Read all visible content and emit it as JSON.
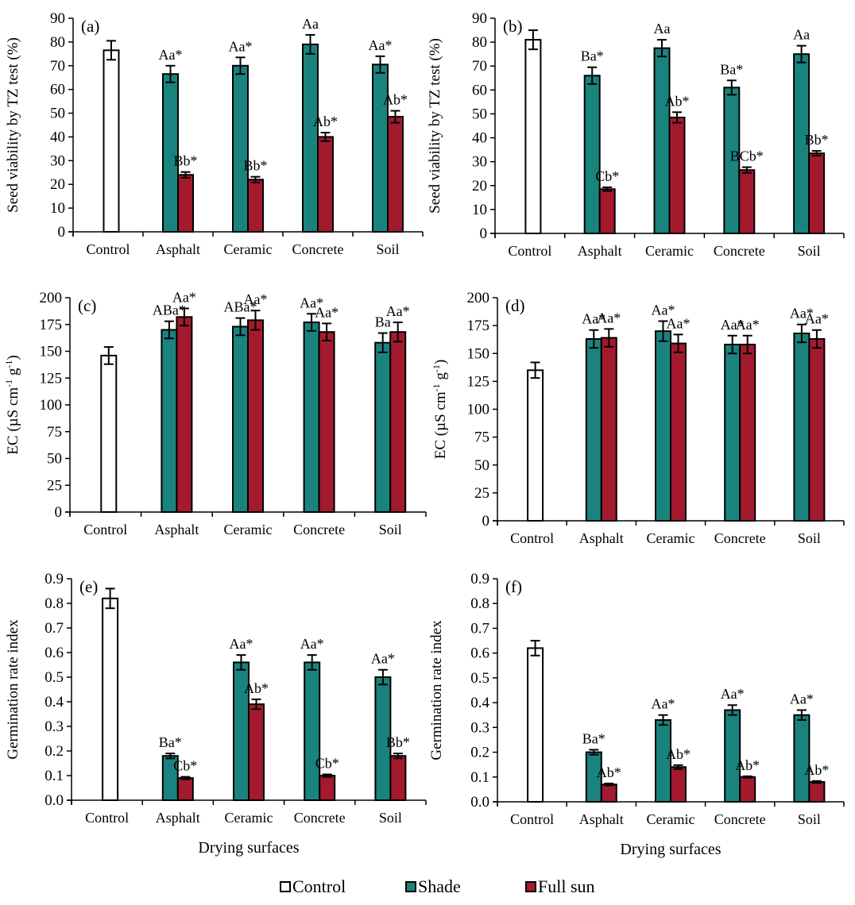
{
  "legend": {
    "items": [
      {
        "label": "Control",
        "color": "#ffffff"
      },
      {
        "label": "Shade",
        "color": "#1a837e"
      },
      {
        "label": "Full sun",
        "color": "#a31a2e"
      }
    ]
  },
  "chart_data": [
    {
      "type": "bar",
      "panel_label": "(a)",
      "ylabel": "Seed viability by TZ test (%)",
      "xlabel": "",
      "ylim": [
        0,
        90
      ],
      "yticks": [
        "0",
        "10",
        "20",
        "30",
        "40",
        "50",
        "60",
        "70",
        "80",
        "90"
      ],
      "categories": [
        "Control",
        "Asphalt",
        "Ceramic",
        "Concrete",
        "Soil"
      ],
      "series": [
        {
          "name": "Control",
          "values": [
            76.5,
            null,
            null,
            null,
            null
          ],
          "errors": [
            4,
            null,
            null,
            null,
            null
          ],
          "labels": [
            "",
            "",
            "",
            "",
            ""
          ]
        },
        {
          "name": "Shade",
          "values": [
            null,
            66.5,
            70,
            79,
            70.5
          ],
          "errors": [
            null,
            3.5,
            3.5,
            4,
            3.5
          ],
          "labels": [
            "",
            "Aa*",
            "Aa*",
            "Aa",
            "Aa*"
          ]
        },
        {
          "name": "Full sun",
          "values": [
            null,
            24,
            22,
            40,
            48.5
          ],
          "errors": [
            null,
            1.2,
            1.2,
            1.8,
            2.5
          ],
          "labels": [
            "",
            "Bb*",
            "Bb*",
            "Ab*",
            "Ab*"
          ]
        }
      ]
    },
    {
      "type": "bar",
      "panel_label": "(b)",
      "ylabel": "Seed viability by TZ test (%)",
      "xlabel": "",
      "ylim": [
        0,
        90
      ],
      "yticks": [
        "0",
        "10",
        "20",
        "30",
        "40",
        "50",
        "60",
        "70",
        "80",
        "90"
      ],
      "categories": [
        "Control",
        "Asphalt",
        "Ceramic",
        "Concrete",
        "Soil"
      ],
      "series": [
        {
          "name": "Control",
          "values": [
            81,
            null,
            null,
            null,
            null
          ],
          "errors": [
            4,
            null,
            null,
            null,
            null
          ],
          "labels": [
            "",
            "",
            "",
            "",
            ""
          ]
        },
        {
          "name": "Shade",
          "values": [
            null,
            66,
            77.5,
            61,
            75
          ],
          "errors": [
            null,
            3.5,
            3.5,
            3,
            3.5
          ],
          "labels": [
            "",
            "Ba*",
            "Aa",
            "Ba*",
            "Aa"
          ]
        },
        {
          "name": "Full sun",
          "values": [
            null,
            18.5,
            48.5,
            26.5,
            33.5
          ],
          "errors": [
            null,
            0.8,
            2.2,
            1.2,
            1
          ],
          "labels": [
            "",
            "Cb*",
            "Ab*",
            "BCb*",
            "Bb*"
          ]
        }
      ]
    },
    {
      "type": "bar",
      "panel_label": "(c)",
      "ylabel": "EC (µS cm-1 g-1)",
      "ylabel_parts": [
        "EC (µS cm",
        "-1",
        " g",
        "-1",
        ")"
      ],
      "xlabel": "",
      "ylim": [
        0,
        200
      ],
      "yticks": [
        "0",
        "25",
        "50",
        "75",
        "100",
        "125",
        "150",
        "175",
        "200"
      ],
      "categories": [
        "Control",
        "Asphalt",
        "Ceramic",
        "Concrete",
        "Soil"
      ],
      "series": [
        {
          "name": "Control",
          "values": [
            146,
            null,
            null,
            null,
            null
          ],
          "errors": [
            8,
            null,
            null,
            null,
            null
          ],
          "labels": [
            "",
            "",
            "",
            "",
            ""
          ]
        },
        {
          "name": "Shade",
          "values": [
            null,
            170,
            173,
            177,
            158
          ],
          "errors": [
            null,
            8,
            8,
            8,
            9
          ],
          "labels": [
            "",
            "ABa*",
            "ABa*",
            "Aa*",
            "Ba"
          ]
        },
        {
          "name": "Full sun",
          "values": [
            null,
            182,
            179,
            168,
            168
          ],
          "errors": [
            null,
            8,
            9,
            8,
            9
          ],
          "labels": [
            "",
            "Aa*",
            "Aa*",
            "Aa*",
            "Aa*"
          ]
        }
      ]
    },
    {
      "type": "bar",
      "panel_label": "(d)",
      "ylabel": "EC (µS cm-1 g-1)",
      "ylabel_parts": [
        "EC (µS cm",
        "-1",
        " g",
        "-1",
        ")"
      ],
      "xlabel": "",
      "ylim": [
        0,
        200
      ],
      "yticks": [
        "0",
        "25",
        "50",
        "75",
        "100",
        "125",
        "150",
        "175",
        "200"
      ],
      "categories": [
        "Control",
        "Asphalt",
        "Ceramic",
        "Concrete",
        "Soil"
      ],
      "series": [
        {
          "name": "Control",
          "values": [
            135,
            null,
            null,
            null,
            null
          ],
          "errors": [
            7,
            null,
            null,
            null,
            null
          ],
          "labels": [
            "",
            "",
            "",
            "",
            ""
          ]
        },
        {
          "name": "Shade",
          "values": [
            null,
            163,
            170,
            158,
            168
          ],
          "errors": [
            null,
            8,
            9,
            8,
            8
          ],
          "labels": [
            "",
            "Aa*",
            "Aa*",
            "Aa*",
            "Aa*"
          ]
        },
        {
          "name": "Full sun",
          "values": [
            null,
            164,
            159,
            158,
            163
          ],
          "errors": [
            null,
            8,
            8,
            8,
            8
          ],
          "labels": [
            "",
            "Aa*",
            "Aa*",
            "Aa*",
            "Aa*"
          ]
        }
      ]
    },
    {
      "type": "bar",
      "panel_label": "(e)",
      "ylabel": "Germination  rate index",
      "xlabel": "Drying surfaces",
      "ylim": [
        0,
        0.9
      ],
      "yticks": [
        "0.0",
        "0.1",
        "0.2",
        "0.3",
        "0.4",
        "0.5",
        "0.6",
        "0.7",
        "0.8",
        "0.9"
      ],
      "categories": [
        "Control",
        "Asphalt",
        "Ceramic",
        "Concrete",
        "Soil"
      ],
      "series": [
        {
          "name": "Control",
          "values": [
            0.82,
            null,
            null,
            null,
            null
          ],
          "errors": [
            0.04,
            null,
            null,
            null,
            null
          ],
          "labels": [
            "",
            "",
            "",
            "",
            ""
          ]
        },
        {
          "name": "Shade",
          "values": [
            null,
            0.18,
            0.56,
            0.56,
            0.5
          ],
          "errors": [
            null,
            0.01,
            0.03,
            0.03,
            0.03
          ],
          "labels": [
            "",
            "Ba*",
            "Aa*",
            "Aa*",
            "Aa*"
          ]
        },
        {
          "name": "Full sun",
          "values": [
            null,
            0.09,
            0.39,
            0.1,
            0.18
          ],
          "errors": [
            null,
            0.005,
            0.02,
            0.005,
            0.01
          ],
          "labels": [
            "",
            "Cb*",
            "Ab*",
            "Cb*",
            "Bb*"
          ]
        }
      ]
    },
    {
      "type": "bar",
      "panel_label": "(f)",
      "ylabel": "Germination  rate index",
      "xlabel": "Drying surfaces",
      "ylim": [
        0,
        0.9
      ],
      "yticks": [
        "0.0",
        "0.1",
        "0.2",
        "0.3",
        "0.4",
        "0.5",
        "0.6",
        "0.7",
        "0.8",
        "0.9"
      ],
      "categories": [
        "Control",
        "Asphalt",
        "Ceramic",
        "Concrete",
        "Soil"
      ],
      "series": [
        {
          "name": "Control",
          "values": [
            0.62,
            null,
            null,
            null,
            null
          ],
          "errors": [
            0.03,
            null,
            null,
            null,
            null
          ],
          "labels": [
            "",
            "",
            "",
            "",
            ""
          ]
        },
        {
          "name": "Shade",
          "values": [
            null,
            0.2,
            0.33,
            0.37,
            0.35
          ],
          "errors": [
            null,
            0.01,
            0.02,
            0.02,
            0.02
          ],
          "labels": [
            "",
            "Ba*",
            "Aa*",
            "Aa*",
            "Aa*"
          ]
        },
        {
          "name": "Full sun",
          "values": [
            null,
            0.07,
            0.14,
            0.1,
            0.08
          ],
          "errors": [
            null,
            0.004,
            0.008,
            0.003,
            0.004
          ],
          "labels": [
            "",
            "Ab*",
            "Ab*",
            "Ab*",
            "Ab*"
          ]
        }
      ]
    }
  ]
}
